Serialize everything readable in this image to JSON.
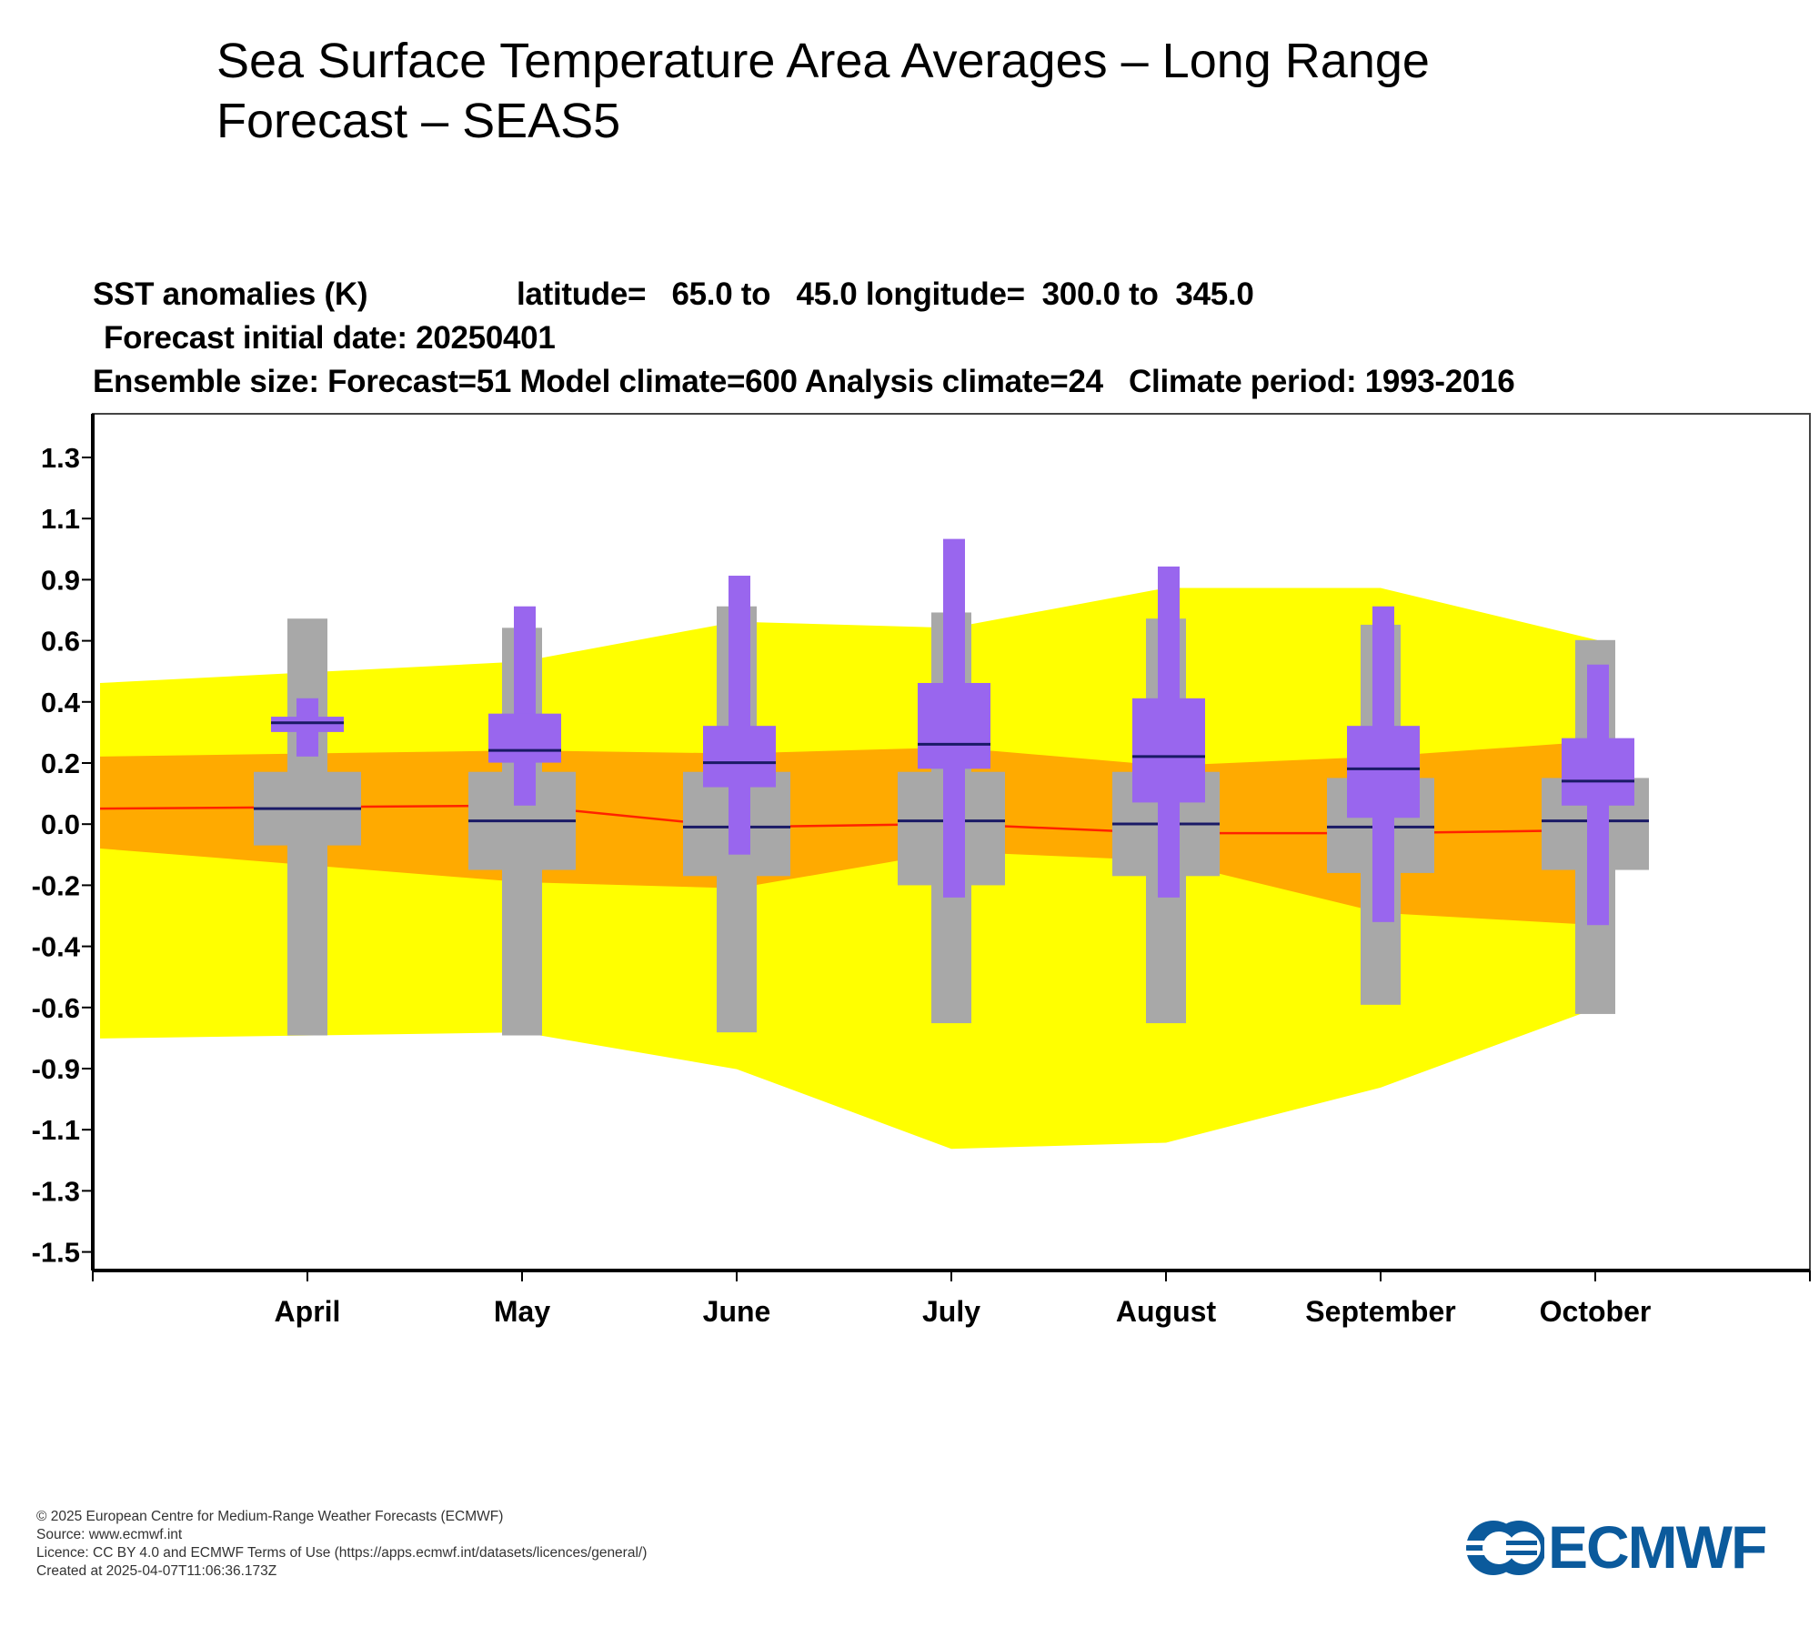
{
  "page": {
    "title_line1": "Sea Surface Temperature Area Averages – Long Range",
    "title_line2": "Forecast – SEAS5"
  },
  "header": {
    "line1_var": "SST anomalies (K)",
    "line1_region": "latitude=   65.0 to   45.0 longitude=  300.0 to  345.0",
    "line2": "Forecast initial date: 20250401",
    "line3": "Ensemble size: Forecast=51 Model climate=600 Analysis climate=24   Climate period: 1993-2016"
  },
  "chart_data": {
    "type": "box",
    "categories": [
      "April",
      "May",
      "June",
      "July",
      "August",
      "September",
      "October"
    ],
    "y_tick_labels": [
      "1.3",
      "1.1",
      "0.9",
      "0.6",
      "0.4",
      "0.2",
      "0.0",
      "-0.2",
      "-0.4",
      "-0.6",
      "-0.9",
      "-1.1",
      "-1.3",
      "-1.5"
    ],
    "ylim": [
      -1.5,
      1.3
    ],
    "colors": {
      "analysis_outer": "#ffff00",
      "analysis_inner": "#ffaa00",
      "analysis_median": "#ff2200",
      "model_climate": "#a8a8a8",
      "forecast": "#9966ee",
      "median_line": "#1a1a66"
    },
    "analysis_climate": {
      "min": [
        -0.7,
        -0.68,
        -0.8,
        -1.06,
        -1.04,
        -0.86,
        -0.6
      ],
      "lower": [
        -0.08,
        -0.19,
        -0.21,
        -0.09,
        -0.12,
        -0.29,
        -0.33
      ],
      "median": [
        0.05,
        0.06,
        -0.01,
        0.0,
        -0.03,
        -0.03,
        -0.02
      ],
      "upper": [
        0.22,
        0.24,
        0.23,
        0.25,
        0.19,
        0.22,
        0.27
      ],
      "max": [
        0.46,
        0.53,
        0.66,
        0.64,
        0.77,
        0.77,
        0.6
      ]
    },
    "model_climate": {
      "min": [
        -0.69,
        -0.69,
        -0.68,
        -0.65,
        -0.65,
        -0.59,
        -0.62
      ],
      "q1": [
        -0.07,
        -0.15,
        -0.17,
        -0.2,
        -0.17,
        -0.16,
        -0.15
      ],
      "median": [
        0.05,
        0.01,
        -0.01,
        0.01,
        0.0,
        -0.01,
        0.01
      ],
      "q3": [
        0.17,
        0.17,
        0.17,
        0.17,
        0.17,
        0.15,
        0.15
      ],
      "max": [
        0.67,
        0.64,
        0.71,
        0.69,
        0.67,
        0.65,
        0.6
      ]
    },
    "forecast": {
      "min": [
        0.22,
        0.06,
        -0.1,
        -0.24,
        -0.24,
        -0.32,
        -0.33
      ],
      "q1": [
        0.3,
        0.2,
        0.12,
        0.18,
        0.07,
        0.02,
        0.06
      ],
      "median": [
        0.33,
        0.24,
        0.2,
        0.26,
        0.22,
        0.18,
        0.14
      ],
      "q3": [
        0.35,
        0.36,
        0.32,
        0.46,
        0.41,
        0.32,
        0.28
      ],
      "max": [
        0.41,
        0.71,
        0.81,
        0.93,
        0.84,
        0.71,
        0.52
      ]
    }
  },
  "footer": {
    "line1": "© 2025 European Centre for Medium-Range Weather Forecasts (ECMWF)",
    "line2": "Source: www.ecmwf.int",
    "line3": "Licence: CC BY 4.0 and ECMWF Terms of Use (https://apps.ecmwf.int/datasets/licences/general/)",
    "line4": "Created at 2025-04-07T11:06:36.173Z"
  },
  "logo": {
    "text": "ECMWF",
    "color": "#0b5a9c"
  }
}
